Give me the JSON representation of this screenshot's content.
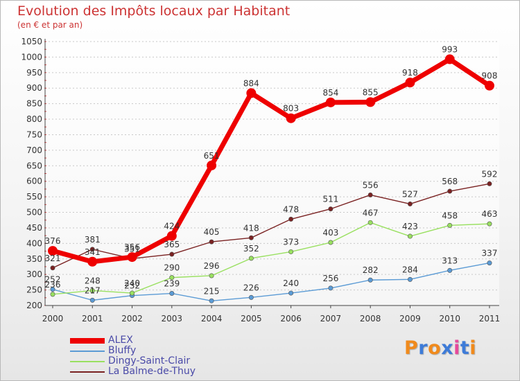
{
  "title": "Evolution des Impôts locaux par Habitant",
  "subtitle": "(en € et par an)",
  "chart_data": {
    "type": "line",
    "title": "Evolution des Impôts locaux par Habitant",
    "subtitle": "(en € et par an)",
    "x": [
      "2000",
      "2001",
      "2002",
      "2003",
      "2004",
      "2005",
      "2006",
      "2007",
      "2008",
      "2009",
      "2010",
      "2011"
    ],
    "ylim": [
      200,
      1050
    ],
    "yticks": [
      200,
      250,
      300,
      350,
      400,
      450,
      500,
      550,
      600,
      650,
      700,
      750,
      800,
      850,
      900,
      950,
      1000,
      1050
    ],
    "grid": "horizontal dashed",
    "legend_position": "bottom-left",
    "series": [
      {
        "name": "ALEX",
        "color": "#ee0000",
        "values": [
          376,
          341,
          356,
          424,
          651,
          884,
          803,
          854,
          855,
          918,
          993,
          908
        ]
      },
      {
        "name": "Bluffy",
        "color": "#5b9bd5",
        "values": [
          252,
          217,
          232,
          239,
          215,
          226,
          240,
          256,
          282,
          284,
          313,
          337
        ]
      },
      {
        "name": "Dingy-Saint-Clair",
        "color": "#99e060",
        "values": [
          236,
          248,
          240,
          290,
          296,
          352,
          373,
          403,
          467,
          423,
          458,
          463
        ]
      },
      {
        "name": "La Balme-de-Thuy",
        "color": "#7a2222",
        "values": [
          321,
          381,
          351,
          365,
          405,
          418,
          478,
          511,
          556,
          527,
          568,
          592
        ]
      }
    ]
  },
  "logo": {
    "text": "Proxiti",
    "colors": [
      "#f08a1c",
      "#3d7bd8",
      "#f08a1c",
      "#3d7bd8",
      "#e64a9c",
      "#3d7bd8",
      "#f08a1c"
    ]
  }
}
